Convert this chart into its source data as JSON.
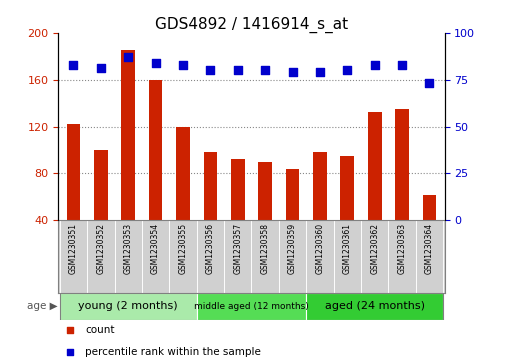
{
  "title": "GDS4892 / 1416914_s_at",
  "samples": [
    "GSM1230351",
    "GSM1230352",
    "GSM1230353",
    "GSM1230354",
    "GSM1230355",
    "GSM1230356",
    "GSM1230357",
    "GSM1230358",
    "GSM1230359",
    "GSM1230360",
    "GSM1230361",
    "GSM1230362",
    "GSM1230363",
    "GSM1230364"
  ],
  "counts": [
    122,
    100,
    185,
    160,
    120,
    98,
    92,
    90,
    84,
    98,
    95,
    132,
    135,
    62
  ],
  "percentiles": [
    83,
    81,
    87,
    84,
    83,
    80,
    80,
    80,
    79,
    79,
    80,
    83,
    83,
    73
  ],
  "ylim_left": [
    40,
    200
  ],
  "ylim_right": [
    0,
    100
  ],
  "yticks_left": [
    40,
    80,
    120,
    160,
    200
  ],
  "yticks_right": [
    0,
    25,
    50,
    75,
    100
  ],
  "bar_color": "#cc2200",
  "dot_color": "#0000cc",
  "bg_color": "#ffffff",
  "sample_box_color": "#d0d0d0",
  "groups": [
    {
      "label": "young (2 months)",
      "start": 0,
      "end": 5,
      "color": "#aaeaaa",
      "font_size": 8
    },
    {
      "label": "middle aged (12 months)",
      "start": 5,
      "end": 9,
      "color": "#55dd55",
      "font_size": 6.5
    },
    {
      "label": "aged (24 months)",
      "start": 9,
      "end": 14,
      "color": "#33cc33",
      "font_size": 8
    }
  ],
  "bar_width": 0.5,
  "dot_size": 35,
  "hline_color": "#888888",
  "tick_label_color_left": "#cc2200",
  "tick_label_color_right": "#0000cc",
  "title_fontsize": 11,
  "legend_items": [
    {
      "label": "count",
      "color": "#cc2200",
      "marker": "s"
    },
    {
      "label": "percentile rank within the sample",
      "color": "#0000cc",
      "marker": "s"
    }
  ]
}
